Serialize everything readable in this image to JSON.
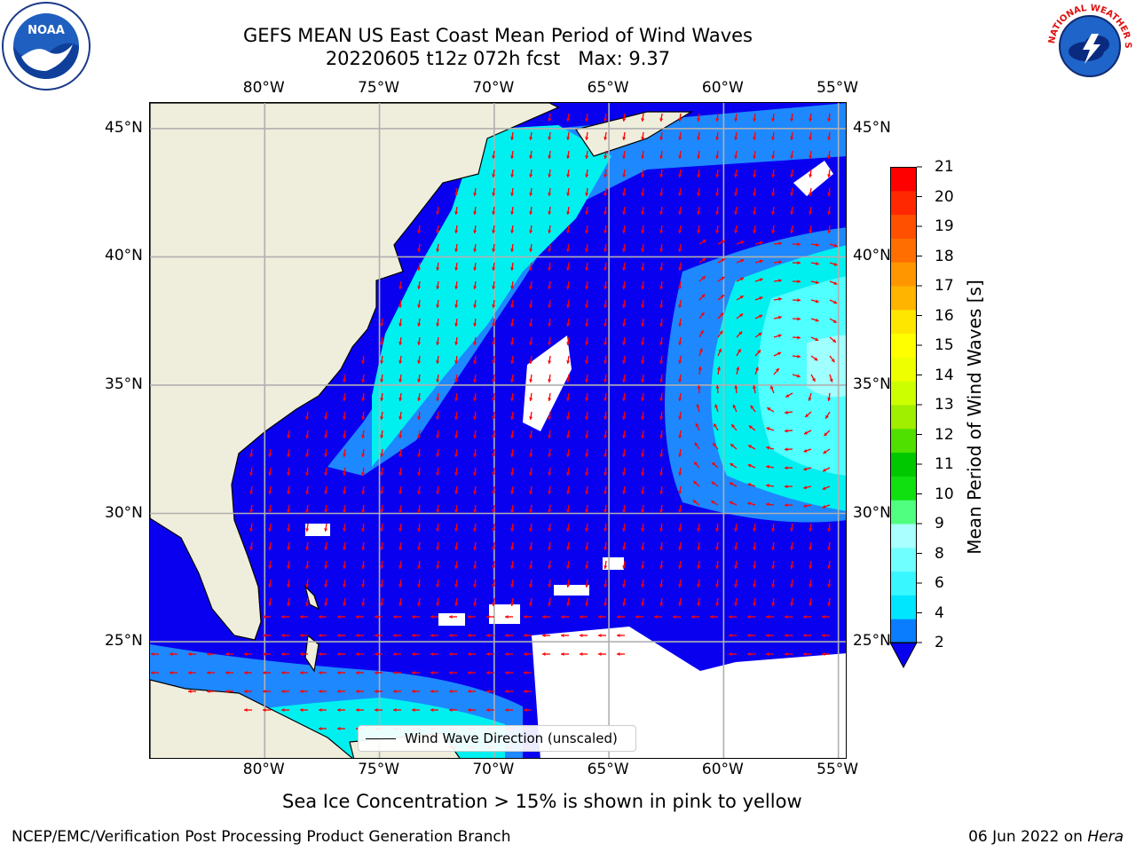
{
  "header": {
    "title_line1": "GEFS MEAN US East Coast Mean Period of Wind Waves",
    "title_line2": "20220605 t12z 072h fcst   Max: 9.37"
  },
  "logos": {
    "left": "noaa-logo",
    "left_text": "NOAA",
    "right": "nws-logo",
    "right_text": "NATIONAL WEATHER SERVICE"
  },
  "map": {
    "lon_labels": [
      "80°W",
      "75°W",
      "70°W",
      "65°W",
      "60°W",
      "55°W"
    ],
    "lon_values": [
      -80,
      -75,
      -70,
      -65,
      -60,
      -55
    ],
    "lat_labels": [
      "45°N",
      "40°N",
      "35°N",
      "30°N",
      "25°N"
    ],
    "lat_values": [
      45,
      40,
      35,
      30,
      25
    ],
    "extent": {
      "lon_min": -85,
      "lon_max": -54.6,
      "lat_min": 20.4,
      "lat_max": 46
    },
    "colors": {
      "land": "#efeddc",
      "period_2_4": "#0a00f0",
      "period_4_6": "#1e88ff",
      "period_6_8": "#00f0f0",
      "period_8_9": "#50ffff",
      "period_9_10": "#a0ffff",
      "arrow": "#ff0000",
      "grid": "#b0b0b0"
    },
    "legend_label": "Wind Wave Direction (unscaled)"
  },
  "colorbar": {
    "title": "Mean Period of Wind Waves [s]",
    "ticks": [
      "21",
      "20",
      "19",
      "18",
      "17",
      "16",
      "15",
      "14",
      "13",
      "12",
      "11",
      "10",
      "9",
      "8",
      "6",
      "4",
      "2"
    ],
    "colors_bottom_to_top": [
      "#0a7dff",
      "#00e6ff",
      "#38f7ff",
      "#70ffff",
      "#aaffff",
      "#50ff80",
      "#10e010",
      "#00c800",
      "#50e000",
      "#a0ee00",
      "#ccff00",
      "#eeff00",
      "#ffff00",
      "#ffe600",
      "#ffb400",
      "#ff9600",
      "#ff6e00",
      "#ff5000",
      "#ff2800",
      "#ff0000"
    ]
  },
  "notes": {
    "ice": "Sea Ice Concentration > 15% is shown in pink to yellow",
    "footer_left": "NCEP/EMC/Verification Post Processing Product Generation Branch",
    "footer_date": "06 Jun 2022 on ",
    "footer_machine": "Hera"
  }
}
